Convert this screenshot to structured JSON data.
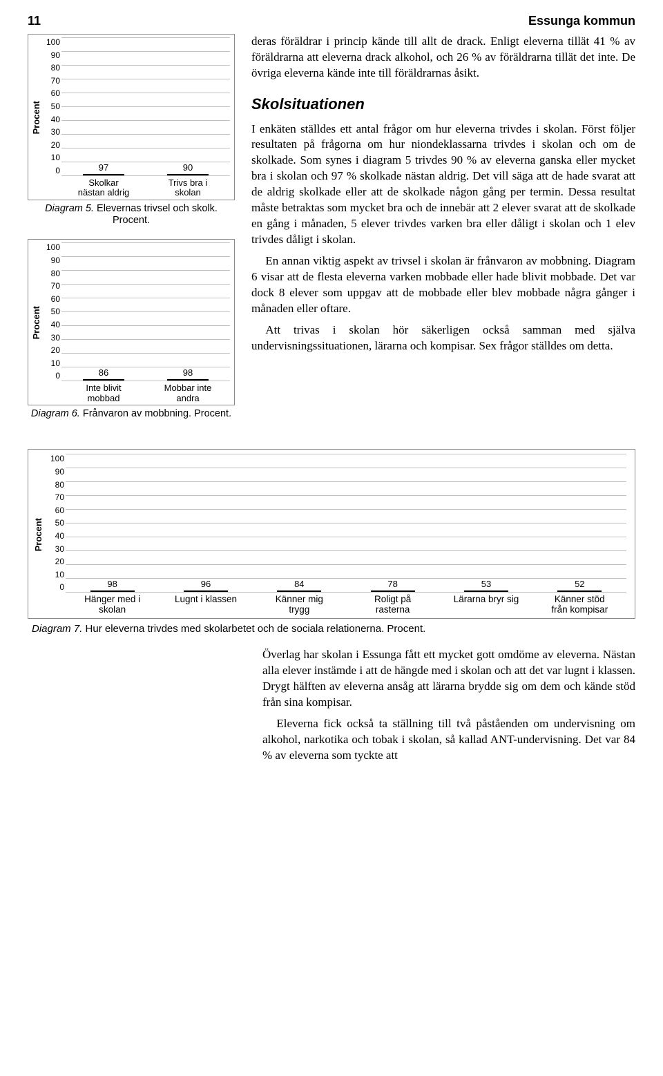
{
  "header": {
    "page_number": "11",
    "doc_title": "Essunga kommun"
  },
  "chart5": {
    "type": "bar",
    "axis_label": "Procent",
    "ylim": [
      0,
      100
    ],
    "ytick_step": 10,
    "yticks": [
      "100",
      "90",
      "80",
      "70",
      "60",
      "50",
      "40",
      "30",
      "20",
      "10",
      "0"
    ],
    "background_color": "#ffffff",
    "grid_color": "#c0c0c0",
    "bars": [
      {
        "label_l1": "Skolkar",
        "label_l2": "nästan aldrig",
        "value": 97,
        "color": "#ff9900",
        "border": "#000000"
      },
      {
        "label_l1": "Trivs bra i",
        "label_l2": "skolan",
        "value": 90,
        "color": "#0000ff",
        "border": "#000000"
      }
    ],
    "caption_prefix": "Diagram 5.",
    "caption_rest": " Elevernas trivsel och skolk. Procent."
  },
  "chart6": {
    "type": "bar",
    "axis_label": "Procent",
    "ylim": [
      0,
      100
    ],
    "ytick_step": 10,
    "yticks": [
      "100",
      "90",
      "80",
      "70",
      "60",
      "50",
      "40",
      "30",
      "20",
      "10",
      "0"
    ],
    "background_color": "#ffffff",
    "grid_color": "#c0c0c0",
    "bars": [
      {
        "label_l1": "Inte blivit",
        "label_l2": "mobbad",
        "value": 86,
        "color": "#ff9900",
        "border": "#000000"
      },
      {
        "label_l1": "Mobbar inte",
        "label_l2": "andra",
        "value": 98,
        "color": "#0000ff",
        "border": "#000000"
      }
    ],
    "caption_prefix": "Diagram 6.",
    "caption_rest": " Frånvaron av mobbning. Procent."
  },
  "right": {
    "p1": "deras föräldrar i princip kände till allt de drack. Enligt eleverna tillät 41 % av föräldrarna att eleverna drack alkohol, och 26 % av föräldrarna tillät det inte. De övriga eleverna kände inte till föräldrarnas åsikt.",
    "section_title": "Skolsituationen",
    "p2": "I enkäten ställdes ett antal frågor om hur eleverna trivdes i skolan. Först följer resultaten på frågorna om hur niondeklassarna trivdes i skolan och om de skolkade. Som synes i diagram 5 trivdes 90 % av eleverna ganska eller mycket bra i skolan och 97 % skolkade nästan aldrig. Det vill säga att de hade svarat att de aldrig skolkade eller att de skolkade någon gång per termin. Dessa resultat måste betraktas som mycket bra och de innebär att 2 elever svarat att de skolkade en gång i månaden, 5 elever trivdes varken bra eller dåligt i skolan och 1 elev trivdes dåligt i skolan.",
    "p3": "En annan viktig aspekt av trivsel i skolan är frånvaron av mobbning. Diagram 6 visar att de flesta eleverna varken mobbade eller hade blivit mobbade. Det var dock 8 elever som uppgav att de mobbade eller blev mobbade några gånger i månaden eller oftare.",
    "p4": "Att trivas i skolan hör säkerligen också samman med själva undervisningssituationen, lärarna och kompisar. Sex frågor ställdes om detta."
  },
  "chart7": {
    "type": "bar",
    "axis_label": "Procent",
    "ylim": [
      0,
      100
    ],
    "ytick_step": 10,
    "yticks": [
      "100",
      "90",
      "80",
      "70",
      "60",
      "50",
      "40",
      "30",
      "20",
      "10",
      "0"
    ],
    "background_color": "#ffffff",
    "grid_color": "#c0c0c0",
    "bar_color": "#0000ff",
    "bar_border": "#000000",
    "bars": [
      {
        "label_l1": "Hänger med i",
        "label_l2": "skolan",
        "value": 98
      },
      {
        "label_l1": "Lugnt i klassen",
        "label_l2": "",
        "value": 96
      },
      {
        "label_l1": "Känner mig",
        "label_l2": "trygg",
        "value": 84
      },
      {
        "label_l1": "Roligt på",
        "label_l2": "rasterna",
        "value": 78
      },
      {
        "label_l1": "Lärarna bryr sig",
        "label_l2": "",
        "value": 53
      },
      {
        "label_l1": "Känner stöd",
        "label_l2": "från kompisar",
        "value": 52
      }
    ],
    "caption_prefix": "Diagram 7.",
    "caption_rest": " Hur eleverna trivdes med skolarbetet och de sociala relationerna. Procent."
  },
  "lower": {
    "p1": "Överlag har skolan i Essunga fått ett mycket gott omdöme av eleverna. Nästan alla elever instämde i att de hängde med i skolan och att det var lugnt i klassen. Drygt hälften av eleverna ansåg att lärarna brydde sig om dem och kände stöd från sina kompisar.",
    "p2": "Eleverna fick också ta ställning till två påståenden om undervisning om alkohol, narkotika och tobak i skolan, så kallad ANT-undervisning. Det var 84 % av eleverna som tyckte att"
  }
}
